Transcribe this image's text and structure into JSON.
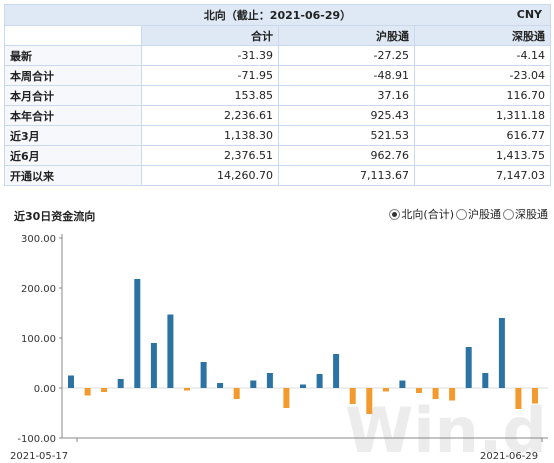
{
  "table": {
    "title": "北向（截止：2021-06-29）",
    "currency": "CNY",
    "headers": [
      "",
      "合计",
      "沪股通",
      "深股通"
    ],
    "rows": [
      {
        "label": "最新",
        "total": "-31.39",
        "sh": "-27.25",
        "sz": "-4.14"
      },
      {
        "label": "本周合计",
        "total": "-71.95",
        "sh": "-48.91",
        "sz": "-23.04"
      },
      {
        "label": "本月合计",
        "total": "153.85",
        "sh": "37.16",
        "sz": "116.70"
      },
      {
        "label": "本年合计",
        "total": "2,236.61",
        "sh": "925.43",
        "sz": "1,311.18"
      },
      {
        "label": "近3月",
        "total": "1,138.30",
        "sh": "521.53",
        "sz": "616.77"
      },
      {
        "label": "近6月",
        "total": "2,376.51",
        "sh": "962.76",
        "sz": "1,413.75"
      },
      {
        "label": "开通以来",
        "total": "14,260.70",
        "sh": "7,113.67",
        "sz": "7,147.03"
      }
    ]
  },
  "chart_section": {
    "title": "近30日资金流向",
    "legend": [
      {
        "label": "北向(合计)",
        "selected": true
      },
      {
        "label": "沪股通",
        "selected": false
      },
      {
        "label": "深股通",
        "selected": false
      }
    ],
    "watermark": "Win.d"
  },
  "chart_data": {
    "type": "bar",
    "title": "近30日资金流向",
    "x_start_label": "2021-05-17",
    "x_end_label": "2021-06-29",
    "ylim": [
      -100,
      300
    ],
    "yticks": [
      "300.00",
      "200.00",
      "100.00",
      "0.00",
      "-100.00"
    ],
    "ytick_values": [
      300,
      200,
      100,
      0,
      -100
    ],
    "grid": false,
    "colors": {
      "positive": "#2b73a3",
      "negative": "#f39a2e"
    },
    "values": [
      25,
      -15,
      -8,
      18,
      218,
      90,
      147,
      -5,
      52,
      10,
      -22,
      15,
      30,
      -40,
      7,
      28,
      68,
      -32,
      -52,
      -7,
      15,
      -10,
      -22,
      -25,
      82,
      30,
      140,
      -42,
      -31
    ]
  }
}
